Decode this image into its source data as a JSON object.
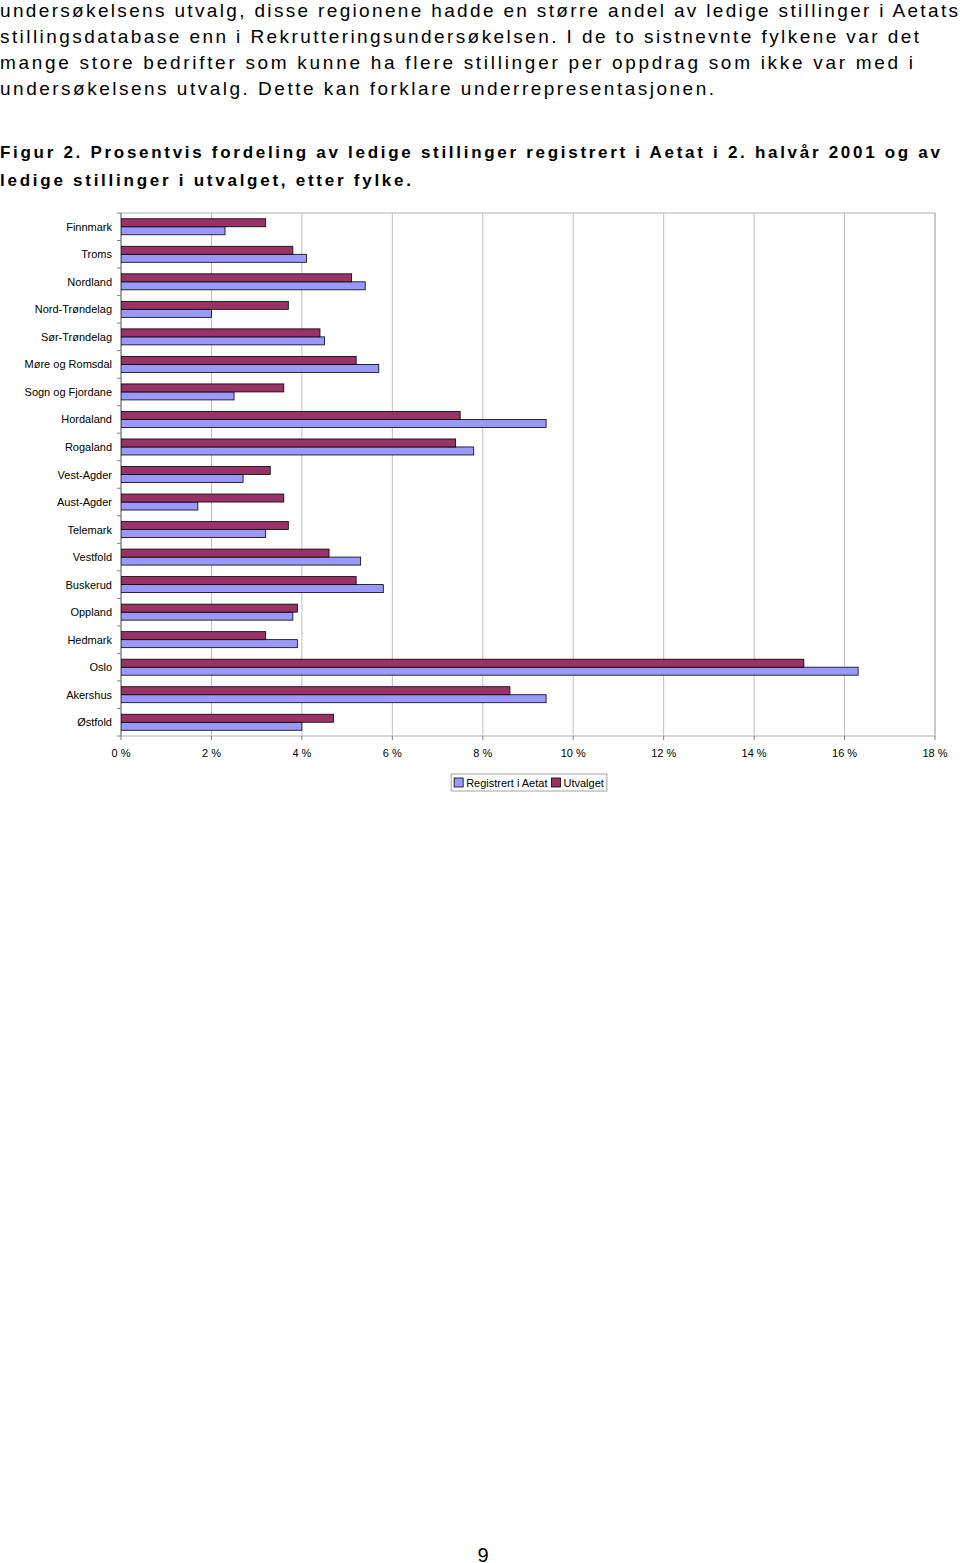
{
  "paragraph": [
    "undersøkelsens utvalg, disse regionene hadde en større andel av ledige stillinger i Aetats",
    "stillingsdatabase enn i Rekrutteringsundersøkelsen. I de to sistnevnte fylkene var det",
    "mange store bedrifter som kunne ha flere stillinger per oppdrag som ikke var med i",
    "undersøkelsens utvalg. Dette kan forklare underrepresentasjonen."
  ],
  "caption": [
    "Figur 2. Prosentvis fordeling av ledige stillinger registrert i Aetat i 2. halvår 2001 og av",
    "ledige stillinger i utvalget, etter fylke."
  ],
  "page_number": "9",
  "chart_data": {
    "type": "bar",
    "orientation": "horizontal",
    "grid": true,
    "legend": "bottom",
    "categories": [
      "Finnmark",
      "Troms",
      "Nordland",
      "Nord-Trøndelag",
      "Sør-Trøndelag",
      "Møre og Romsdal",
      "Sogn og Fjordane",
      "Hordaland",
      "Rogaland",
      "Vest-Agder",
      "Aust-Agder",
      "Telemark",
      "Vestfold",
      "Buskerud",
      "Oppland",
      "Hedmark",
      "Oslo",
      "Akershus",
      "Østfold"
    ],
    "series": [
      {
        "name": "Registrert i Aetat",
        "color": "#9999ff",
        "values": [
          2.3,
          4.1,
          5.4,
          2.0,
          4.5,
          5.7,
          2.5,
          9.4,
          7.8,
          2.7,
          1.7,
          3.2,
          5.3,
          5.8,
          3.8,
          3.9,
          16.3,
          9.4,
          4.0
        ]
      },
      {
        "name": "Utvalget",
        "color": "#993366",
        "values": [
          3.2,
          3.8,
          5.1,
          3.7,
          4.4,
          5.2,
          3.6,
          7.5,
          7.4,
          3.3,
          3.6,
          3.7,
          4.6,
          5.2,
          3.9,
          3.2,
          15.1,
          8.6,
          4.7
        ]
      }
    ],
    "xlim": [
      0,
      18
    ],
    "xticks": [
      {
        "value": 0,
        "label": "0 %"
      },
      {
        "value": 2,
        "label": "2 %"
      },
      {
        "value": 4,
        "label": "4 %"
      },
      {
        "value": 6,
        "label": "6 %"
      },
      {
        "value": 8,
        "label": "8 %"
      },
      {
        "value": 10,
        "label": "10 %"
      },
      {
        "value": 12,
        "label": "12 %"
      },
      {
        "value": 14,
        "label": "14 %"
      },
      {
        "value": 16,
        "label": "16 %"
      },
      {
        "value": 18,
        "label": "18 %"
      }
    ]
  }
}
